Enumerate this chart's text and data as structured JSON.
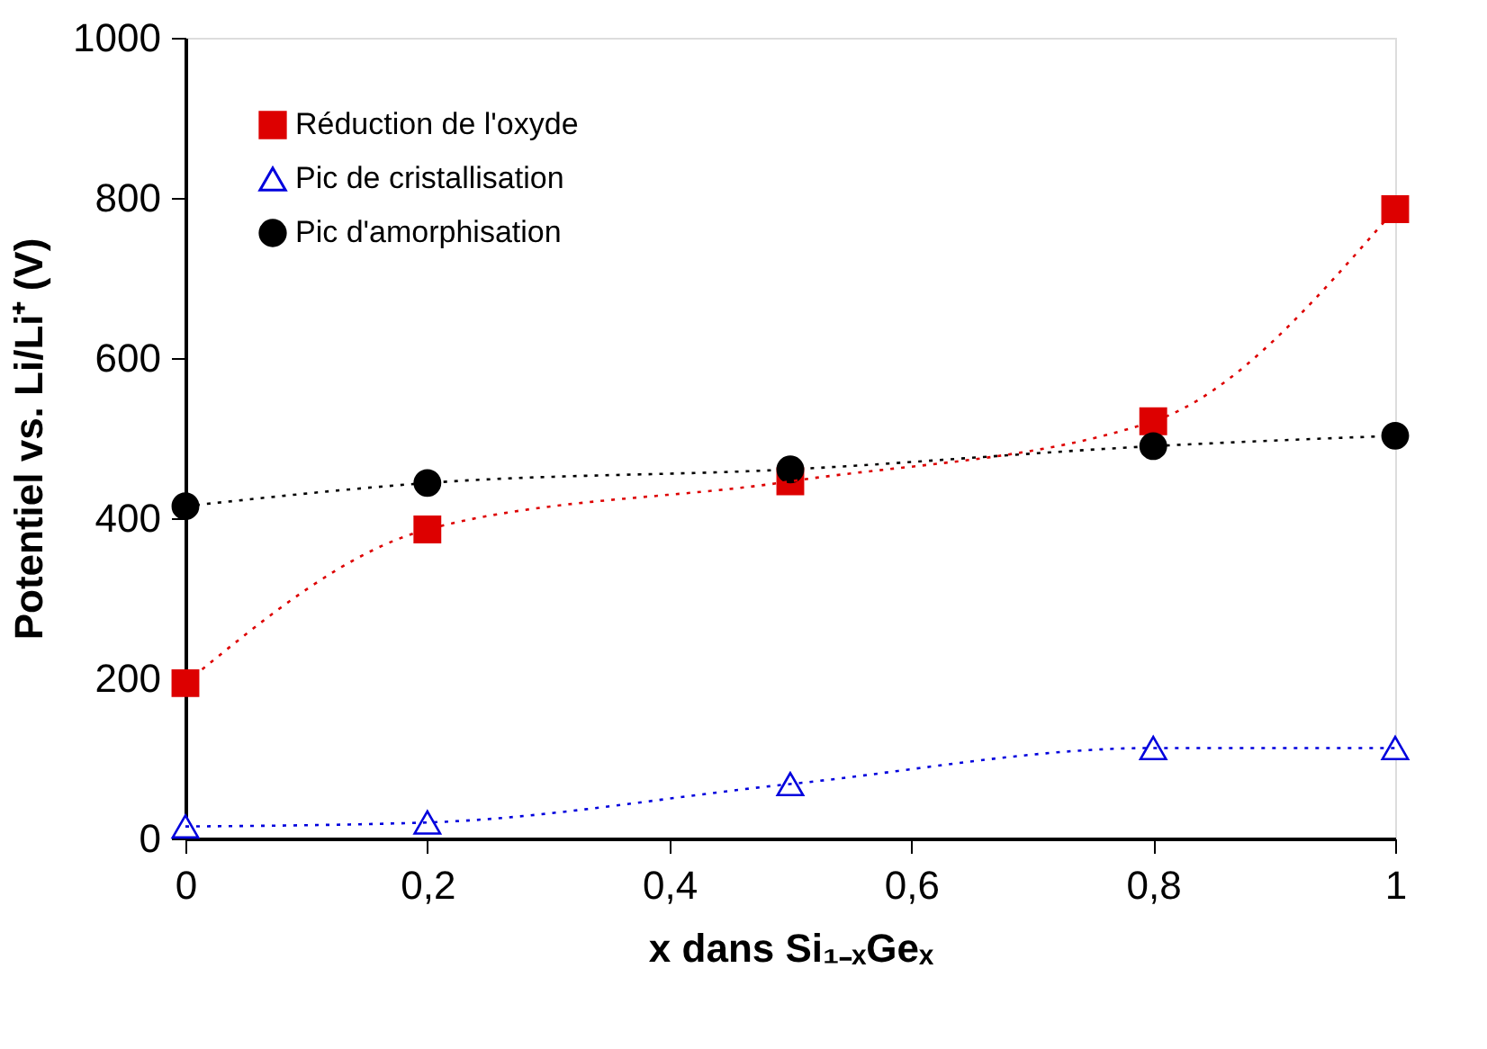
{
  "chart_data": {
    "type": "line",
    "xlabel": "x dans Si₁₋ₓGeₓ",
    "ylabel": "Potentiel vs. Li/Li⁺ (V)",
    "x": [
      0,
      0.2,
      0.5,
      0.8,
      1
    ],
    "xlim": [
      0,
      1
    ],
    "xticks": [
      0,
      {
        "value": 0.2,
        "label": "0,2"
      },
      {
        "value": 0.4,
        "label": "0,4"
      },
      {
        "value": 0.6,
        "label": "0,6"
      },
      {
        "value": 0.8,
        "label": "0,8"
      },
      1
    ],
    "ylim": [
      0,
      1000
    ],
    "yticks": [
      0,
      200,
      400,
      600,
      800,
      1000
    ],
    "grid": false,
    "legend": "top left",
    "line_style": "dotted",
    "series": [
      {
        "name": "Réduction de l'oxyde",
        "color": "#dd0000",
        "marker": "square",
        "values": [
          194,
          386,
          446,
          521,
          786
        ]
      },
      {
        "name": "Pic de cristallisation",
        "color": "#0000dd",
        "marker": "triangle",
        "values": [
          15,
          20,
          68,
          113,
          113
        ]
      },
      {
        "name": "Pic d'amorphisation",
        "color": "#000000",
        "marker": "circle",
        "values": [
          415,
          444,
          461,
          490,
          503
        ]
      }
    ]
  }
}
